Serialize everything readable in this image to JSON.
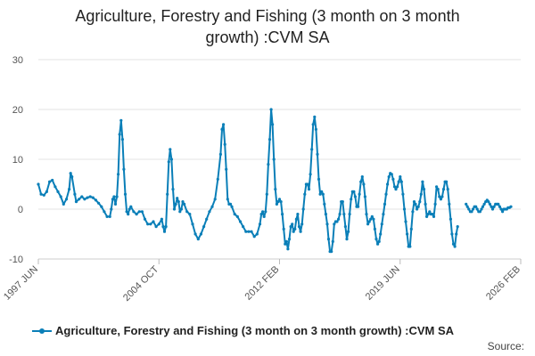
{
  "chart_data": {
    "type": "line",
    "title_line1": "Agriculture, Forestry and Fishing (3 month on 3 month",
    "title_line2": "growth) :CVM SA",
    "x_start": "1997-06",
    "x_end": "2026-02",
    "x_tick_labels": [
      "1997 JUN",
      "2004 OCT",
      "2012 FEB",
      "2019 JUN",
      "2026 FEB"
    ],
    "y_ticks": [
      -10,
      0,
      10,
      20,
      30
    ],
    "ylim": [
      -10,
      30
    ],
    "grid": true,
    "legend_position": "bottom",
    "color": "#0a7fb8",
    "series": [
      {
        "name": "Agriculture, Forestry and Fishing (3 month on 3 month growth) :CVM SA",
        "points": [
          [
            "1997-06",
            5
          ],
          [
            "1997-08",
            3
          ],
          [
            "1997-10",
            2.8
          ],
          [
            "1997-12",
            3.5
          ],
          [
            "1998-02",
            5.5
          ],
          [
            "1998-04",
            5.8
          ],
          [
            "1998-06",
            4.5
          ],
          [
            "1998-08",
            3.5
          ],
          [
            "1998-10",
            2.5
          ],
          [
            "1998-12",
            1
          ],
          [
            "1999-02",
            2
          ],
          [
            "1999-04",
            4
          ],
          [
            "1999-05",
            7.2
          ],
          [
            "1999-06",
            6.5
          ],
          [
            "1999-08",
            3
          ],
          [
            "1999-09",
            1.5
          ],
          [
            "1999-11",
            2
          ],
          [
            "2000-01",
            2.5
          ],
          [
            "2000-03",
            2
          ],
          [
            "2000-05",
            2.3
          ],
          [
            "2000-07",
            2.5
          ],
          [
            "2000-09",
            2.3
          ],
          [
            "2000-11",
            1.8
          ],
          [
            "2001-01",
            1.2
          ],
          [
            "2001-03",
            0.5
          ],
          [
            "2001-05",
            -0.5
          ],
          [
            "2001-07",
            -1.5
          ],
          [
            "2001-09",
            -1.5
          ],
          [
            "2001-10",
            0
          ],
          [
            "2001-11",
            2
          ],
          [
            "2001-12",
            2.5
          ],
          [
            "2002-01",
            1
          ],
          [
            "2002-02",
            2.5
          ],
          [
            "2002-03",
            7
          ],
          [
            "2002-04",
            15
          ],
          [
            "2002-05",
            17.8
          ],
          [
            "2002-06",
            14
          ],
          [
            "2002-07",
            8
          ],
          [
            "2002-08",
            3
          ],
          [
            "2002-09",
            -0.5
          ],
          [
            "2002-10",
            -1
          ],
          [
            "2002-11",
            0
          ],
          [
            "2002-12",
            0.5
          ],
          [
            "2003-02",
            -0.5
          ],
          [
            "2003-04",
            -1
          ],
          [
            "2003-06",
            -0.5
          ],
          [
            "2003-08",
            -0.5
          ],
          [
            "2003-10",
            -2
          ],
          [
            "2003-12",
            -3
          ],
          [
            "2004-02",
            -3
          ],
          [
            "2004-04",
            -2.5
          ],
          [
            "2004-06",
            -3.5
          ],
          [
            "2004-08",
            -3
          ],
          [
            "2004-10",
            -2
          ],
          [
            "2004-11",
            -3.5
          ],
          [
            "2004-12",
            -4.5
          ],
          [
            "2005-01",
            -3.5
          ],
          [
            "2005-02",
            3
          ],
          [
            "2005-03",
            9.5
          ],
          [
            "2005-04",
            12
          ],
          [
            "2005-05",
            10
          ],
          [
            "2005-06",
            4
          ],
          [
            "2005-07",
            0
          ],
          [
            "2005-08",
            1
          ],
          [
            "2005-09",
            2.2
          ],
          [
            "2005-10",
            1.5
          ],
          [
            "2005-11",
            -0.5
          ],
          [
            "2005-12",
            0
          ],
          [
            "2006-01",
            1.5
          ],
          [
            "2006-02",
            1
          ],
          [
            "2006-04",
            -0.5
          ],
          [
            "2006-06",
            -1
          ],
          [
            "2006-08",
            -3
          ],
          [
            "2006-10",
            -5
          ],
          [
            "2006-12",
            -6
          ],
          [
            "2007-02",
            -5
          ],
          [
            "2007-04",
            -3.5
          ],
          [
            "2007-06",
            -2
          ],
          [
            "2007-08",
            -0.5
          ],
          [
            "2007-10",
            0.5
          ],
          [
            "2007-12",
            2
          ],
          [
            "2008-02",
            6
          ],
          [
            "2008-04",
            11
          ],
          [
            "2008-05",
            16
          ],
          [
            "2008-06",
            17
          ],
          [
            "2008-07",
            13
          ],
          [
            "2008-08",
            8
          ],
          [
            "2008-09",
            2
          ],
          [
            "2008-10",
            1
          ],
          [
            "2008-11",
            1
          ],
          [
            "2008-12",
            0.5
          ],
          [
            "2009-02",
            -1
          ],
          [
            "2009-04",
            -1.5
          ],
          [
            "2009-06",
            -2.5
          ],
          [
            "2009-08",
            -3.5
          ],
          [
            "2009-10",
            -4.5
          ],
          [
            "2009-12",
            -4.5
          ],
          [
            "2010-02",
            -4.5
          ],
          [
            "2010-04",
            -5.5
          ],
          [
            "2010-06",
            -5
          ],
          [
            "2010-08",
            -3
          ],
          [
            "2010-09",
            -1
          ],
          [
            "2010-10",
            -0.5
          ],
          [
            "2010-11",
            -1.5
          ],
          [
            "2010-12",
            -0.5
          ],
          [
            "2011-01",
            3
          ],
          [
            "2011-02",
            9
          ],
          [
            "2011-03",
            14
          ],
          [
            "2011-04",
            20
          ],
          [
            "2011-05",
            17
          ],
          [
            "2011-06",
            10
          ],
          [
            "2011-07",
            4
          ],
          [
            "2011-08",
            1
          ],
          [
            "2011-09",
            1.5
          ],
          [
            "2011-10",
            2
          ],
          [
            "2011-11",
            1.5
          ],
          [
            "2011-12",
            -1
          ],
          [
            "2012-01",
            -4
          ],
          [
            "2012-02",
            -7
          ],
          [
            "2012-03",
            -6.5
          ],
          [
            "2012-04",
            -8
          ],
          [
            "2012-05",
            -6
          ],
          [
            "2012-06",
            -3.5
          ],
          [
            "2012-07",
            -3
          ],
          [
            "2012-08",
            -4.5
          ],
          [
            "2012-09",
            -4
          ],
          [
            "2012-10",
            -2
          ],
          [
            "2012-11",
            -1
          ],
          [
            "2012-12",
            -3.5
          ],
          [
            "2013-01",
            -4.5
          ],
          [
            "2013-02",
            -3
          ],
          [
            "2013-03",
            0
          ],
          [
            "2013-04",
            3
          ],
          [
            "2013-05",
            5
          ],
          [
            "2013-06",
            5
          ],
          [
            "2013-07",
            4
          ],
          [
            "2013-08",
            7
          ],
          [
            "2013-09",
            12
          ],
          [
            "2013-10",
            17
          ],
          [
            "2013-11",
            18.5
          ],
          [
            "2013-12",
            16
          ],
          [
            "2014-01",
            11
          ],
          [
            "2014-02",
            6
          ],
          [
            "2014-03",
            3
          ],
          [
            "2014-04",
            3.5
          ],
          [
            "2014-05",
            3
          ],
          [
            "2014-06",
            1
          ],
          [
            "2014-07",
            -1
          ],
          [
            "2014-08",
            -3
          ],
          [
            "2014-09",
            -6
          ],
          [
            "2014-10",
            -8.5
          ],
          [
            "2014-11",
            -8.5
          ],
          [
            "2014-12",
            -6.5
          ],
          [
            "2015-01",
            -3
          ],
          [
            "2015-02",
            -2.5
          ],
          [
            "2015-03",
            -2.5
          ],
          [
            "2015-04",
            -2
          ],
          [
            "2015-05",
            -1
          ],
          [
            "2015-06",
            1.5
          ],
          [
            "2015-07",
            1.5
          ],
          [
            "2015-08",
            -1
          ],
          [
            "2015-09",
            -3.5
          ],
          [
            "2015-10",
            -6
          ],
          [
            "2015-11",
            -4.5
          ],
          [
            "2015-12",
            -1
          ],
          [
            "2016-01",
            2
          ],
          [
            "2016-02",
            3.5
          ],
          [
            "2016-03",
            3.5
          ],
          [
            "2016-04",
            2.5
          ],
          [
            "2016-05",
            0.5
          ],
          [
            "2016-06",
            0.5
          ],
          [
            "2016-07",
            3
          ],
          [
            "2016-08",
            5.5
          ],
          [
            "2016-09",
            6.5
          ],
          [
            "2016-10",
            5
          ],
          [
            "2016-11",
            2.5
          ],
          [
            "2016-12",
            -1
          ],
          [
            "2017-01",
            -3
          ],
          [
            "2017-02",
            -2.5
          ],
          [
            "2017-03",
            -2
          ],
          [
            "2017-04",
            -1.5
          ],
          [
            "2017-05",
            -2
          ],
          [
            "2017-06",
            -4
          ],
          [
            "2017-07",
            -6
          ],
          [
            "2017-08",
            -7
          ],
          [
            "2017-09",
            -6.5
          ],
          [
            "2017-10",
            -5
          ],
          [
            "2017-11",
            -3
          ],
          [
            "2017-12",
            -1
          ],
          [
            "2018-01",
            1
          ],
          [
            "2018-02",
            3
          ],
          [
            "2018-03",
            5
          ],
          [
            "2018-04",
            6.5
          ],
          [
            "2018-05",
            7.2
          ],
          [
            "2018-06",
            7
          ],
          [
            "2018-07",
            6
          ],
          [
            "2018-08",
            4.5
          ],
          [
            "2018-09",
            4
          ],
          [
            "2018-10",
            4.5
          ],
          [
            "2018-11",
            5.5
          ],
          [
            "2018-12",
            6.5
          ],
          [
            "2019-01",
            5.5
          ],
          [
            "2019-02",
            3
          ],
          [
            "2019-03",
            0
          ],
          [
            "2019-04",
            -2.5
          ],
          [
            "2019-05",
            -5
          ],
          [
            "2019-06",
            -7.5
          ],
          [
            "2019-07",
            -7.5
          ],
          [
            "2019-08",
            -4
          ],
          [
            "2019-09",
            -0.5
          ],
          [
            "2019-10",
            1.5
          ],
          [
            "2019-11",
            1
          ],
          [
            "2019-12",
            0
          ],
          [
            "2020-01",
            0.5
          ],
          [
            "2020-02",
            1.5
          ],
          [
            "2020-03",
            3
          ],
          [
            "2020-04",
            5.5
          ],
          [
            "2020-05",
            4
          ],
          [
            "2020-06",
            1
          ],
          [
            "2020-07",
            -1.5
          ],
          [
            "2020-08",
            -1
          ],
          [
            "2020-09",
            -0.5
          ],
          [
            "2020-10",
            -1
          ],
          [
            "2020-11",
            -1
          ],
          [
            "2020-12",
            -1.5
          ],
          [
            "2021-01",
            1
          ],
          [
            "2021-02",
            4.5
          ],
          [
            "2021-03",
            4
          ],
          [
            "2021-04",
            2.5
          ],
          [
            "2021-05",
            2
          ],
          [
            "2021-06",
            2.5
          ],
          [
            "2021-07",
            4
          ],
          [
            "2021-08",
            5.5
          ],
          [
            "2021-09",
            5.5
          ],
          [
            "2021-10",
            4
          ],
          [
            "2021-11",
            1
          ],
          [
            "2021-12",
            -2
          ],
          [
            "2022-01",
            -5
          ],
          [
            "2022-02",
            -7
          ],
          [
            "2022-03",
            -7.5
          ],
          [
            "2022-04",
            -5
          ],
          [
            "2022-05",
            -3.5
          ],
          [
            "2022-06",
            null
          ],
          [
            "2022-11",
            1
          ],
          [
            "2022-12",
            0.5
          ],
          [
            "2023-01",
            0
          ],
          [
            "2023-02",
            -0.5
          ],
          [
            "2023-03",
            -0.5
          ],
          [
            "2023-04",
            0
          ],
          [
            "2023-05",
            0.5
          ],
          [
            "2023-06",
            0.5
          ],
          [
            "2023-07",
            0
          ],
          [
            "2023-08",
            -0.5
          ],
          [
            "2023-09",
            -0.5
          ],
          [
            "2023-10",
            0
          ],
          [
            "2023-11",
            0.5
          ],
          [
            "2023-12",
            1
          ],
          [
            "2024-01",
            1.5
          ],
          [
            "2024-02",
            1.8
          ],
          [
            "2024-03",
            1.5
          ],
          [
            "2024-04",
            1
          ],
          [
            "2024-05",
            0.5
          ],
          [
            "2024-06",
            0
          ],
          [
            "2024-07",
            0.5
          ],
          [
            "2024-08",
            1
          ],
          [
            "2024-09",
            1
          ],
          [
            "2024-10",
            1
          ],
          [
            "2024-11",
            0.5
          ],
          [
            "2024-12",
            0
          ],
          [
            "2025-01",
            -0.5
          ],
          [
            "2025-02",
            0
          ],
          [
            "2025-03",
            0
          ],
          [
            "2025-04",
            0
          ],
          [
            "2025-05",
            0.3
          ],
          [
            "2025-06",
            0.3
          ],
          [
            "2025-07",
            0.5
          ]
        ]
      }
    ]
  },
  "legend": {
    "label": "Agriculture, Forestry and Fishing (3 month on 3 month growth) :CVM SA"
  },
  "footer": {
    "source_label": "Source:"
  }
}
